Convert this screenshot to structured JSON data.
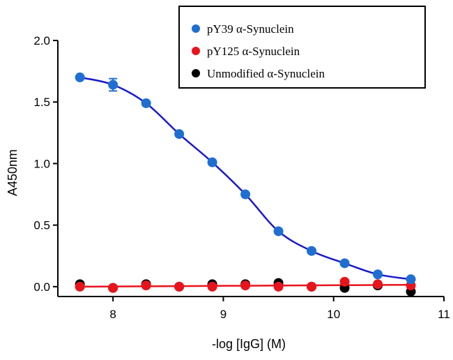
{
  "chart_data": {
    "type": "scatter",
    "title": "",
    "xlabel": "-log [IgG] (M)",
    "ylabel": "A450nm",
    "xlim": [
      7.5,
      11
    ],
    "ylim": [
      -0.08,
      2.0
    ],
    "xticks": [
      "8",
      "9",
      "10",
      "11"
    ],
    "yticks": [
      "0.0",
      "0.5",
      "1.0",
      "1.5",
      "2.0"
    ],
    "grid": false,
    "legend_position": "top-right",
    "x": [
      7.7,
      8.0,
      8.3,
      8.6,
      8.9,
      9.2,
      9.5,
      9.8,
      10.1,
      10.4,
      10.7
    ],
    "series": [
      {
        "name": "pY39 α-Synuclein",
        "color": "#1f6fd1",
        "line_color": "#1a1acc",
        "values": [
          1.7,
          1.64,
          1.49,
          1.24,
          1.01,
          0.75,
          0.45,
          0.29,
          0.19,
          0.1,
          0.06
        ],
        "error": [
          0.0,
          0.05,
          0.0,
          0.0,
          0.0,
          0.0,
          0.0,
          0.0,
          0.0,
          0.0,
          0.0
        ]
      },
      {
        "name": "pY125 α-Synuclein",
        "color": "#e8141c",
        "line_color": "#e8141c",
        "values": [
          0.0,
          -0.01,
          0.01,
          0.0,
          0.0,
          0.01,
          0.0,
          0.0,
          0.04,
          0.02,
          0.01
        ]
      },
      {
        "name": "Unmodified  α-Synuclein",
        "color": "#000000",
        "line_color": "",
        "values": [
          0.02,
          -0.01,
          0.02,
          0.0,
          0.02,
          0.02,
          0.03,
          0.0,
          -0.01,
          0.01,
          -0.04
        ]
      }
    ]
  }
}
